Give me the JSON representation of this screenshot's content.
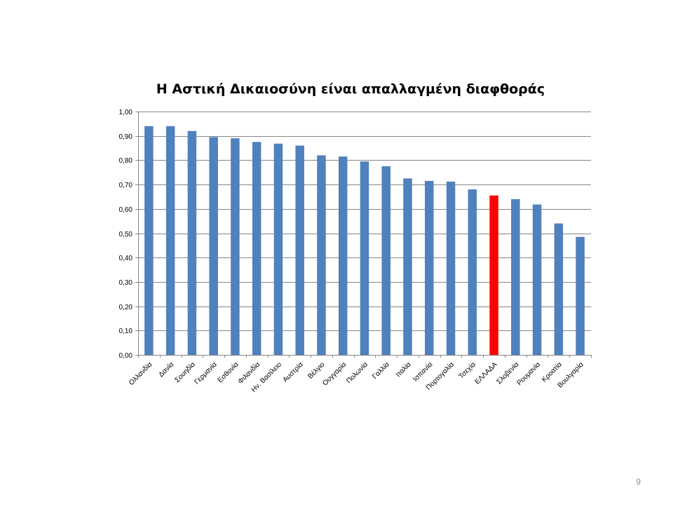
{
  "slide": {
    "page_number": "9"
  },
  "chart_data": {
    "type": "bar",
    "title": "Η Αστική Δικαιοσύνη είναι απαλλαγμένη διαφθοράς",
    "xlabel": "",
    "ylabel": "",
    "ylim": [
      0,
      1
    ],
    "y_ticks": [
      "0,00",
      "0,10",
      "0,20",
      "0,30",
      "0,40",
      "0,50",
      "0,60",
      "0,70",
      "0,80",
      "0,90",
      "1,00"
    ],
    "grid": true,
    "legend": "none",
    "categories": [
      "Ολλανδία",
      "Δανία",
      "Σουηδία",
      "Γερμανία",
      "Εσθονία",
      "Φιλανδία",
      "Ην. Βασίλειο",
      "Αυστρία",
      "Βέλγιο",
      "Ουγγαρία",
      "Πολωνία",
      "Γαλλία",
      "Ιταλία",
      "Ισπανία",
      "Πορτογαλία",
      "Τσεχία",
      "ΕΛΛΑΔΑ",
      "Σλοβενία",
      "Ρουμανία",
      "Κροατία",
      "Βουλγαρία"
    ],
    "values": [
      0.94,
      0.94,
      0.92,
      0.895,
      0.89,
      0.875,
      0.868,
      0.86,
      0.82,
      0.815,
      0.795,
      0.775,
      0.725,
      0.715,
      0.712,
      0.68,
      0.655,
      0.64,
      0.618,
      0.54,
      0.485
    ],
    "colors": {
      "default": "#4f81bd",
      "highlight": "#ff0000",
      "highlight_category": "ΕΛΛΑΔΑ",
      "grid": "#868686"
    }
  }
}
